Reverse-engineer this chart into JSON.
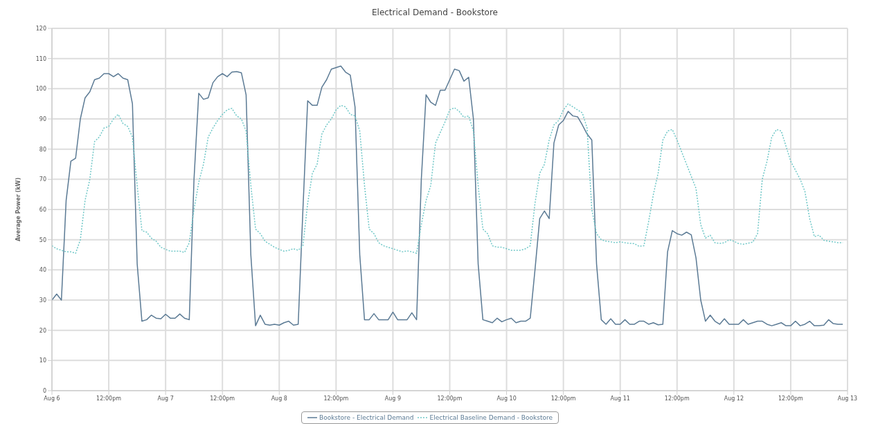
{
  "chart_data": {
    "type": "line",
    "title": "Electrical Demand - Bookstore",
    "ylabel": "Average Power (kW)",
    "categories": [
      "Aug 6",
      null,
      null,
      null,
      null,
      null,
      null,
      null,
      null,
      null,
      null,
      null,
      "12:00pm",
      null,
      null,
      null,
      null,
      null,
      null,
      null,
      null,
      null,
      null,
      null,
      "Aug 7",
      null,
      null,
      null,
      null,
      null,
      null,
      null,
      null,
      null,
      null,
      null,
      "12:00pm",
      null,
      null,
      null,
      null,
      null,
      null,
      null,
      null,
      null,
      null,
      null,
      "Aug 8",
      null,
      null,
      null,
      null,
      null,
      null,
      null,
      null,
      null,
      null,
      null,
      "12:00pm",
      null,
      null,
      null,
      null,
      null,
      null,
      null,
      null,
      null,
      null,
      null,
      "Aug 9",
      null,
      null,
      null,
      null,
      null,
      null,
      null,
      null,
      null,
      null,
      null,
      "12:00pm",
      null,
      null,
      null,
      null,
      null,
      null,
      null,
      null,
      null,
      null,
      null,
      "Aug 10",
      null,
      null,
      null,
      null,
      null,
      null,
      null,
      null,
      null,
      null,
      null,
      "12:00pm",
      null,
      null,
      null,
      null,
      null,
      null,
      null,
      null,
      null,
      null,
      null,
      "Aug 11",
      null,
      null,
      null,
      null,
      null,
      null,
      null,
      null,
      null,
      null,
      null,
      "12:00pm",
      null,
      null,
      null,
      null,
      null,
      null,
      null,
      null,
      null,
      null,
      null,
      "Aug 12",
      null,
      null,
      null,
      null,
      null,
      null,
      null,
      null,
      null,
      null,
      null,
      "12:00pm",
      null,
      null,
      null,
      null,
      null,
      null,
      null,
      null,
      null,
      null,
      null,
      "Aug 13"
    ],
    "series": [
      {
        "name": "Bookstore - Electrical Demand",
        "color": "#5b7a94",
        "line_style": "solid",
        "values": [
          30,
          32,
          30,
          63,
          76,
          77,
          90,
          97,
          99,
          103,
          103.5,
          105,
          105,
          104,
          105,
          103.5,
          103,
          95,
          42,
          23,
          23.5,
          25,
          24,
          23.8,
          25.3,
          24,
          24,
          25.4,
          24,
          23.5,
          70,
          98.5,
          96.5,
          97,
          102,
          104,
          105,
          104,
          105.5,
          105.7,
          105.3,
          98,
          45,
          21.5,
          25,
          22,
          21.7,
          22,
          21.7,
          22.5,
          23,
          21.7,
          22,
          60,
          96,
          94.5,
          94.5,
          100.5,
          103,
          106.5,
          107,
          107.5,
          105.5,
          104.5,
          94,
          45,
          23.5,
          23.5,
          25.5,
          23.5,
          23.5,
          23.5,
          26,
          23.5,
          23.5,
          23.5,
          25.8,
          23.5,
          70,
          98,
          95.5,
          94.5,
          99.5,
          99.5,
          103,
          106.5,
          106,
          102.5,
          103.8,
          90,
          42,
          23.5,
          23,
          22.5,
          24,
          22.8,
          23.5,
          24,
          22.5,
          23,
          23,
          24,
          40,
          57,
          59.5,
          57,
          82,
          88,
          89.5,
          92.5,
          91,
          90.7,
          88,
          85,
          83,
          42,
          23.5,
          22,
          23.8,
          22,
          22,
          23.5,
          22,
          22,
          23,
          23,
          22,
          22.5,
          21.8,
          22,
          46,
          53,
          52,
          51.5,
          52.5,
          51.6,
          44,
          30,
          23,
          25,
          23,
          22,
          23.8,
          22,
          22,
          22,
          23.5,
          22,
          22.5,
          23,
          23,
          22,
          21.5,
          22,
          22.5,
          21.5,
          21.5,
          23,
          21.5,
          22,
          23,
          21.5,
          21.5,
          21.7,
          23.5,
          22.2,
          22,
          22,
          null
        ]
      },
      {
        "name": "Electrical Baseline Demand - Bookstore",
        "color": "#6fc7c7",
        "line_style": "dotted",
        "values": [
          48,
          47,
          46.5,
          46,
          46,
          45.5,
          50,
          63,
          70,
          82.5,
          84,
          87,
          87.5,
          90,
          91.5,
          88.5,
          87.5,
          84,
          68,
          53,
          52.5,
          50.5,
          49.5,
          47.5,
          46.8,
          46.2,
          46.2,
          46.2,
          45.8,
          49,
          60,
          69,
          75,
          84,
          87,
          89.5,
          91.5,
          93,
          93.5,
          91,
          90,
          86,
          68,
          53.5,
          52,
          49.5,
          48.5,
          47.5,
          46.8,
          46.2,
          46.5,
          47,
          46.5,
          48,
          62,
          72,
          75,
          85,
          88,
          90,
          93,
          94.5,
          94,
          91.5,
          91,
          86,
          68,
          53.5,
          52,
          49,
          48,
          47.5,
          47,
          46.5,
          46,
          46.3,
          46,
          45.5,
          55,
          63,
          68,
          82,
          85.5,
          89,
          93,
          93.7,
          92.5,
          90.5,
          91,
          86,
          68,
          53.5,
          52,
          48,
          47.5,
          47.5,
          47,
          46.5,
          46.5,
          46.5,
          47,
          48,
          62,
          72,
          75,
          83,
          88,
          89.5,
          93,
          95,
          94,
          93,
          92,
          87,
          60,
          52,
          50,
          49.5,
          49.3,
          49,
          49.3,
          49,
          48.8,
          48.7,
          47.8,
          48,
          56,
          65,
          72,
          83,
          86,
          86.5,
          83,
          79,
          75,
          71,
          67,
          55,
          50.5,
          51.5,
          49,
          48.8,
          49,
          50,
          49.5,
          48.7,
          48.5,
          48.8,
          49.2,
          52,
          70,
          76,
          84,
          86.5,
          86,
          81,
          76,
          73,
          70,
          66,
          57,
          51,
          51.5,
          49.8,
          49.5,
          49.3,
          49,
          49,
          null
        ]
      }
    ],
    "ylim": [
      0,
      120
    ],
    "yticks": [
      0,
      10,
      20,
      30,
      40,
      50,
      60,
      70,
      80,
      90,
      100,
      110,
      120
    ],
    "grid": true,
    "legend": "bottom",
    "marker": "none"
  }
}
